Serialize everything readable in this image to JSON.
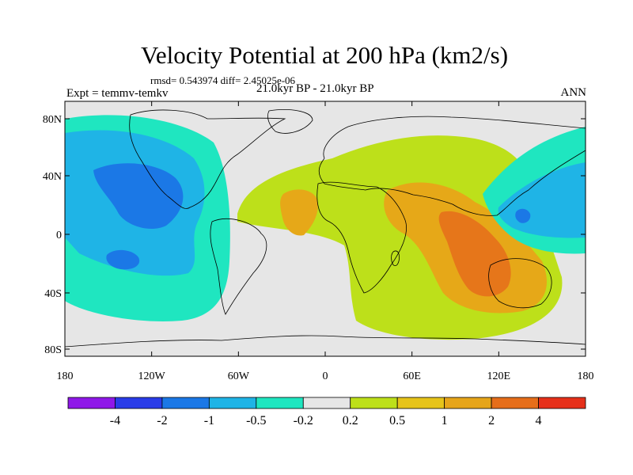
{
  "title": "Velocity Potential at 200 hPa (km2/s)",
  "stats_line": "rmsd= 0.543974 diff= 2.45025e-06",
  "expt_label": "Expt = temmv-temkv",
  "period_label": "21.0kyr BP - 21.0kyr BP",
  "season_label": "ANN",
  "lat_ticks": [
    "80N",
    "40N",
    "0",
    "40S",
    "80S"
  ],
  "lon_ticks": [
    "180",
    "120W",
    "60W",
    "0",
    "60E",
    "120E",
    "180"
  ],
  "colorbar": {
    "labels": [
      "-4",
      "-2",
      "-1",
      "-0.5",
      "-0.2",
      "0.2",
      "0.5",
      "1",
      "2",
      "4"
    ],
    "colors": [
      "#8f18e8",
      "#2a3ce8",
      "#1b78e6",
      "#1fb4e6",
      "#1fe6c0",
      "#e6e6e6",
      "#bde01a",
      "#e6c41a",
      "#e6a51a",
      "#e66e1a",
      "#e6301a"
    ]
  },
  "palette": {
    "neutral": "#e6e6e6",
    "pos_1": "#bde01a",
    "pos_2": "#e6a818",
    "pos_3": "#e6761a",
    "neg_1": "#1fe6c0",
    "neg_2": "#1fb4e6",
    "neg_3": "#1b78e6"
  }
}
